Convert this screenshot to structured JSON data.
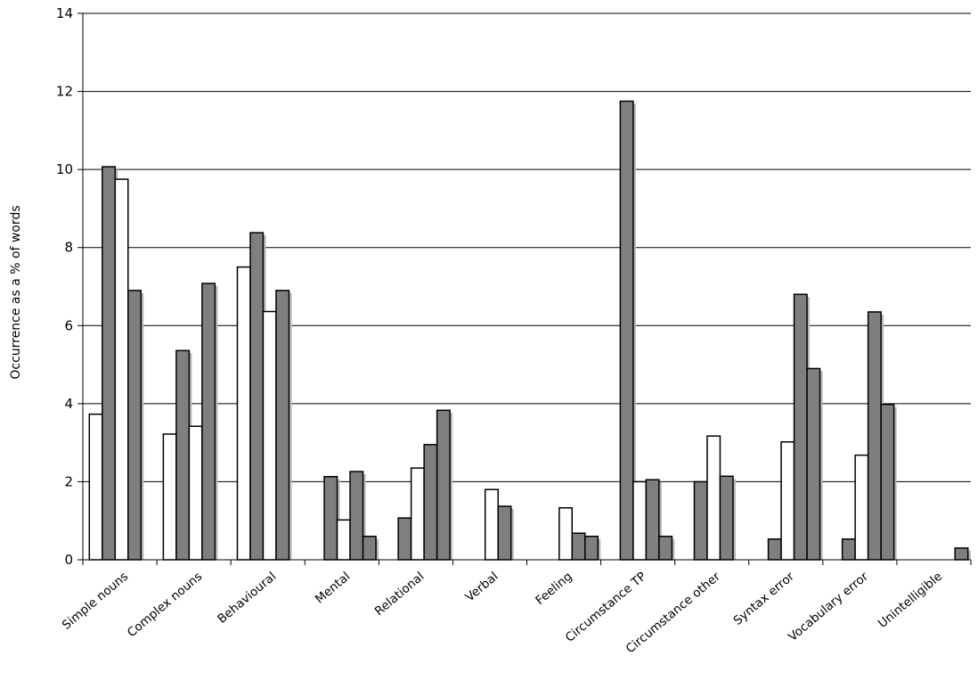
{
  "chart_data": {
    "type": "bar",
    "title": "",
    "xlabel": "",
    "ylabel": "Occurrence as a % of words",
    "ylim": [
      0,
      14
    ],
    "yticks": [
      0,
      2,
      4,
      6,
      8,
      10,
      12,
      14
    ],
    "grid": true,
    "legend": "none",
    "categories": [
      "Simple nouns",
      "Complex nouns",
      "Behavioural",
      "Mental",
      "Relational",
      "Verbal",
      "Feeling",
      "Circumstance TP",
      "Circumstance other",
      "Syntax error",
      "Vocabulary error",
      "Unintelligible"
    ],
    "series": [
      {
        "values": [
          3.73,
          3.22,
          7.5,
          0,
          0,
          0,
          0,
          0,
          0,
          0,
          0,
          0
        ],
        "color": "#ffffff"
      },
      {
        "values": [
          10.07,
          5.36,
          8.38,
          2.13,
          1.07,
          0,
          0,
          11.75,
          2.0,
          0.53,
          0.53,
          0
        ],
        "color": "#7f7f7f"
      },
      {
        "values": [
          9.75,
          3.42,
          6.36,
          1.02,
          2.35,
          1.8,
          1.33,
          2.0,
          3.17,
          3.02,
          2.68,
          0
        ],
        "color": "#ffffff"
      },
      {
        "values": [
          6.9,
          7.08,
          6.9,
          2.26,
          2.95,
          1.37,
          0.68,
          2.05,
          2.14,
          6.8,
          6.35,
          0
        ],
        "color": "#7f7f7f"
      },
      {
        "values": [
          0,
          0,
          0,
          0.6,
          3.83,
          0,
          0.6,
          0.6,
          0,
          4.9,
          3.98,
          0.3
        ],
        "color": "#7f7f7f"
      }
    ]
  }
}
